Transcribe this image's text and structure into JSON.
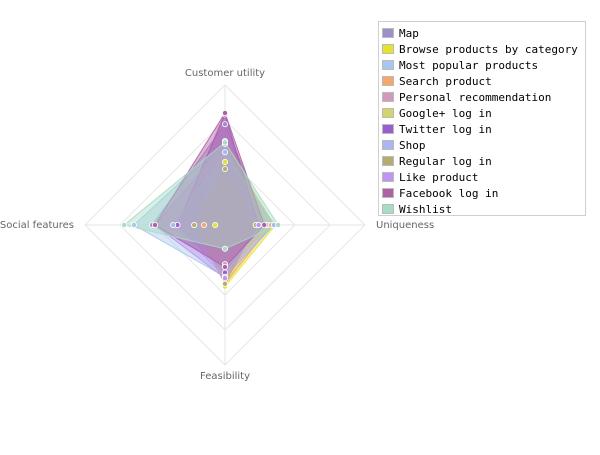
{
  "chart_data": {
    "type": "radar",
    "axes": [
      "Customer utility",
      "Uniqueness",
      "Feasibility",
      "Social features"
    ],
    "range": [
      0,
      10
    ],
    "grid": true,
    "legend_position": "top-right",
    "series": [
      {
        "name": "Map",
        "color": "#9f8fc8",
        "values": [
          7.2,
          3.0,
          2.8,
          5.2
        ]
      },
      {
        "name": "Browse products by category",
        "color": "#e3e32e",
        "values": [
          4.5,
          3.6,
          4.4,
          0.7
        ]
      },
      {
        "name": "Most popular products",
        "color": "#a9c7ec",
        "values": [
          6.0,
          3.0,
          3.7,
          6.5
        ]
      },
      {
        "name": "Search product",
        "color": "#f6a66a",
        "values": [
          5.8,
          3.3,
          4.2,
          1.5
        ]
      },
      {
        "name": "Personal recommendation",
        "color": "#d19ab8",
        "values": [
          8.0,
          2.2,
          2.8,
          3.4
        ]
      },
      {
        "name": "Google+ log in",
        "color": "#d0d46a",
        "values": [
          5.8,
          3.5,
          3.0,
          2.2
        ]
      },
      {
        "name": "Twitter log in",
        "color": "#9a5ed0",
        "values": [
          7.9,
          2.4,
          3.4,
          3.4
        ]
      },
      {
        "name": "Shop",
        "color": "#a9b6f2",
        "values": [
          5.2,
          3.5,
          3.7,
          3.7
        ]
      },
      {
        "name": "Regular log in",
        "color": "#b4ad70",
        "values": [
          4.0,
          2.2,
          4.2,
          2.2
        ]
      },
      {
        "name": "Like product",
        "color": "#bf94f2",
        "values": [
          5.8,
          2.4,
          3.8,
          5.0
        ]
      },
      {
        "name": "Facebook log in",
        "color": "#b060a4",
        "values": [
          8.0,
          2.8,
          3.0,
          5.0
        ]
      },
      {
        "name": "Wishlist",
        "color": "#a6dcc4",
        "values": [
          5.9,
          3.8,
          1.7,
          7.2
        ]
      }
    ]
  }
}
